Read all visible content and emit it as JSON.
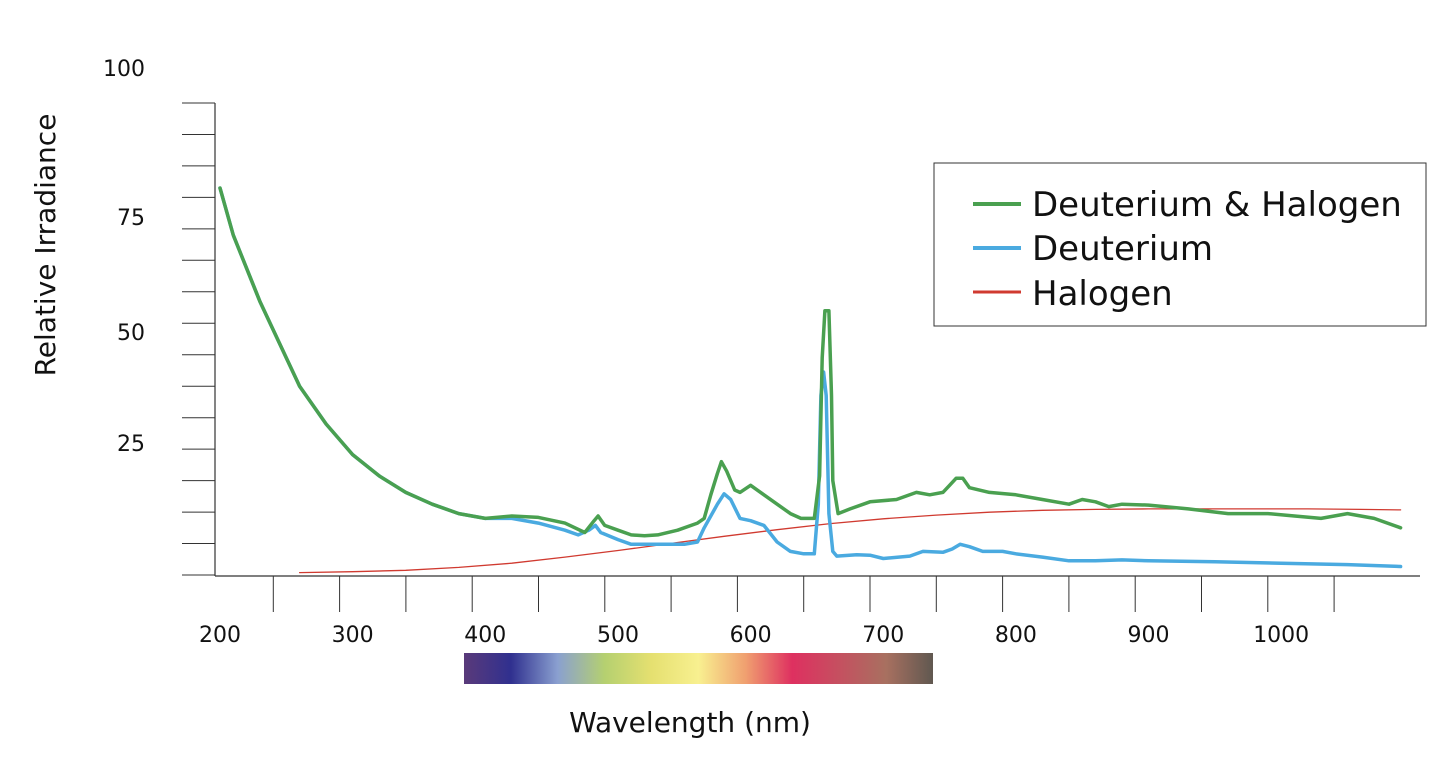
{
  "chart_data": {
    "type": "line",
    "xlabel": "Wavelength (nm)",
    "ylabel": "Relative Irradiance",
    "xlim": [
      200,
      1100
    ],
    "ylim": [
      0,
      100
    ],
    "x_ticks": [
      200,
      300,
      400,
      500,
      600,
      700,
      800,
      900,
      1000
    ],
    "y_ticks": [
      25,
      50,
      75,
      100
    ],
    "grid": false,
    "legend_position": "top-right",
    "spectrum_bar": {
      "from": 380,
      "to": 750,
      "stops": [
        "#5a3a7a",
        "#30308f",
        "#8aa0d0",
        "#b5d070",
        "#e5e070",
        "#f8f090",
        "#f0a070",
        "#de3060",
        "#c55060",
        "#a87060",
        "#605850"
      ]
    },
    "series": [
      {
        "name": "Deuterium & Halogen",
        "color": "#4aa050",
        "width": 3.5,
        "points": [
          [
            200,
            82
          ],
          [
            210,
            72
          ],
          [
            230,
            58
          ],
          [
            250,
            46
          ],
          [
            260,
            40
          ],
          [
            280,
            32
          ],
          [
            300,
            25.5
          ],
          [
            320,
            21
          ],
          [
            340,
            17.5
          ],
          [
            360,
            15
          ],
          [
            380,
            13
          ],
          [
            400,
            12
          ],
          [
            420,
            12.5
          ],
          [
            440,
            12.2
          ],
          [
            460,
            11
          ],
          [
            475,
            9
          ],
          [
            482,
            11.5
          ],
          [
            485,
            12.5
          ],
          [
            490,
            10.5
          ],
          [
            500,
            9.5
          ],
          [
            510,
            8.5
          ],
          [
            520,
            8.3
          ],
          [
            530,
            8.5
          ],
          [
            545,
            9.5
          ],
          [
            560,
            11
          ],
          [
            565,
            12
          ],
          [
            570,
            17
          ],
          [
            575,
            21.5
          ],
          [
            578,
            24
          ],
          [
            582,
            22
          ],
          [
            588,
            18
          ],
          [
            592,
            17.5
          ],
          [
            600,
            19
          ],
          [
            610,
            17
          ],
          [
            630,
            13
          ],
          [
            638,
            12
          ],
          [
            648,
            12
          ],
          [
            652,
            21
          ],
          [
            654,
            46
          ],
          [
            656,
            56
          ],
          [
            659,
            56
          ],
          [
            661,
            38
          ],
          [
            662,
            20
          ],
          [
            666,
            13
          ],
          [
            675,
            14
          ],
          [
            690,
            15.5
          ],
          [
            710,
            16
          ],
          [
            725,
            17.5
          ],
          [
            735,
            17
          ],
          [
            745,
            17.5
          ],
          [
            750,
            19
          ],
          [
            755,
            20.5
          ],
          [
            760,
            20.5
          ],
          [
            765,
            18.5
          ],
          [
            780,
            17.5
          ],
          [
            800,
            17
          ],
          [
            820,
            16
          ],
          [
            840,
            15
          ],
          [
            850,
            16
          ],
          [
            860,
            15.5
          ],
          [
            870,
            14.5
          ],
          [
            880,
            15
          ],
          [
            900,
            14.8
          ],
          [
            930,
            14
          ],
          [
            960,
            13
          ],
          [
            990,
            13
          ],
          [
            1010,
            12.5
          ],
          [
            1030,
            12
          ],
          [
            1050,
            13
          ],
          [
            1070,
            12
          ],
          [
            1090,
            10
          ]
        ]
      },
      {
        "name": "Deuterium",
        "color": "#4aaae0",
        "width": 3.5,
        "points": [
          [
            200,
            82
          ],
          [
            210,
            72
          ],
          [
            230,
            58
          ],
          [
            250,
            46
          ],
          [
            260,
            40
          ],
          [
            280,
            32
          ],
          [
            300,
            25.5
          ],
          [
            320,
            21
          ],
          [
            340,
            17.5
          ],
          [
            360,
            15
          ],
          [
            380,
            13
          ],
          [
            400,
            12
          ],
          [
            420,
            12
          ],
          [
            440,
            11
          ],
          [
            460,
            9.5
          ],
          [
            470,
            8.5
          ],
          [
            478,
            9.5
          ],
          [
            483,
            10.5
          ],
          [
            487,
            9
          ],
          [
            500,
            7.5
          ],
          [
            510,
            6.5
          ],
          [
            530,
            6.5
          ],
          [
            550,
            6.5
          ],
          [
            560,
            7
          ],
          [
            565,
            10
          ],
          [
            575,
            15
          ],
          [
            580,
            17.2
          ],
          [
            585,
            16
          ],
          [
            592,
            12
          ],
          [
            600,
            11.5
          ],
          [
            610,
            10.5
          ],
          [
            620,
            7
          ],
          [
            630,
            5
          ],
          [
            640,
            4.5
          ],
          [
            648,
            4.5
          ],
          [
            651,
            15
          ],
          [
            653,
            38
          ],
          [
            655,
            43
          ],
          [
            657,
            38
          ],
          [
            659,
            13
          ],
          [
            662,
            5
          ],
          [
            665,
            4
          ],
          [
            680,
            4.3
          ],
          [
            690,
            4.2
          ],
          [
            700,
            3.5
          ],
          [
            720,
            4
          ],
          [
            730,
            5
          ],
          [
            745,
            4.8
          ],
          [
            752,
            5.5
          ],
          [
            758,
            6.5
          ],
          [
            765,
            6
          ],
          [
            775,
            5
          ],
          [
            790,
            5
          ],
          [
            800,
            4.5
          ],
          [
            820,
            3.8
          ],
          [
            840,
            3
          ],
          [
            860,
            3
          ],
          [
            880,
            3.2
          ],
          [
            900,
            3
          ],
          [
            950,
            2.8
          ],
          [
            1000,
            2.5
          ],
          [
            1050,
            2.2
          ],
          [
            1090,
            1.8
          ]
        ]
      },
      {
        "name": "Halogen",
        "color": "#d03a30",
        "width": 1.3,
        "points": [
          [
            260,
            0.5
          ],
          [
            300,
            0.7
          ],
          [
            340,
            1
          ],
          [
            380,
            1.6
          ],
          [
            420,
            2.5
          ],
          [
            460,
            3.8
          ],
          [
            500,
            5.2
          ],
          [
            540,
            6.7
          ],
          [
            580,
            8.2
          ],
          [
            620,
            9.6
          ],
          [
            660,
            10.9
          ],
          [
            700,
            11.9
          ],
          [
            740,
            12.7
          ],
          [
            780,
            13.3
          ],
          [
            820,
            13.7
          ],
          [
            860,
            13.9
          ],
          [
            900,
            14
          ],
          [
            940,
            14
          ],
          [
            980,
            14
          ],
          [
            1020,
            14
          ],
          [
            1060,
            13.9
          ],
          [
            1090,
            13.8
          ]
        ]
      }
    ]
  }
}
